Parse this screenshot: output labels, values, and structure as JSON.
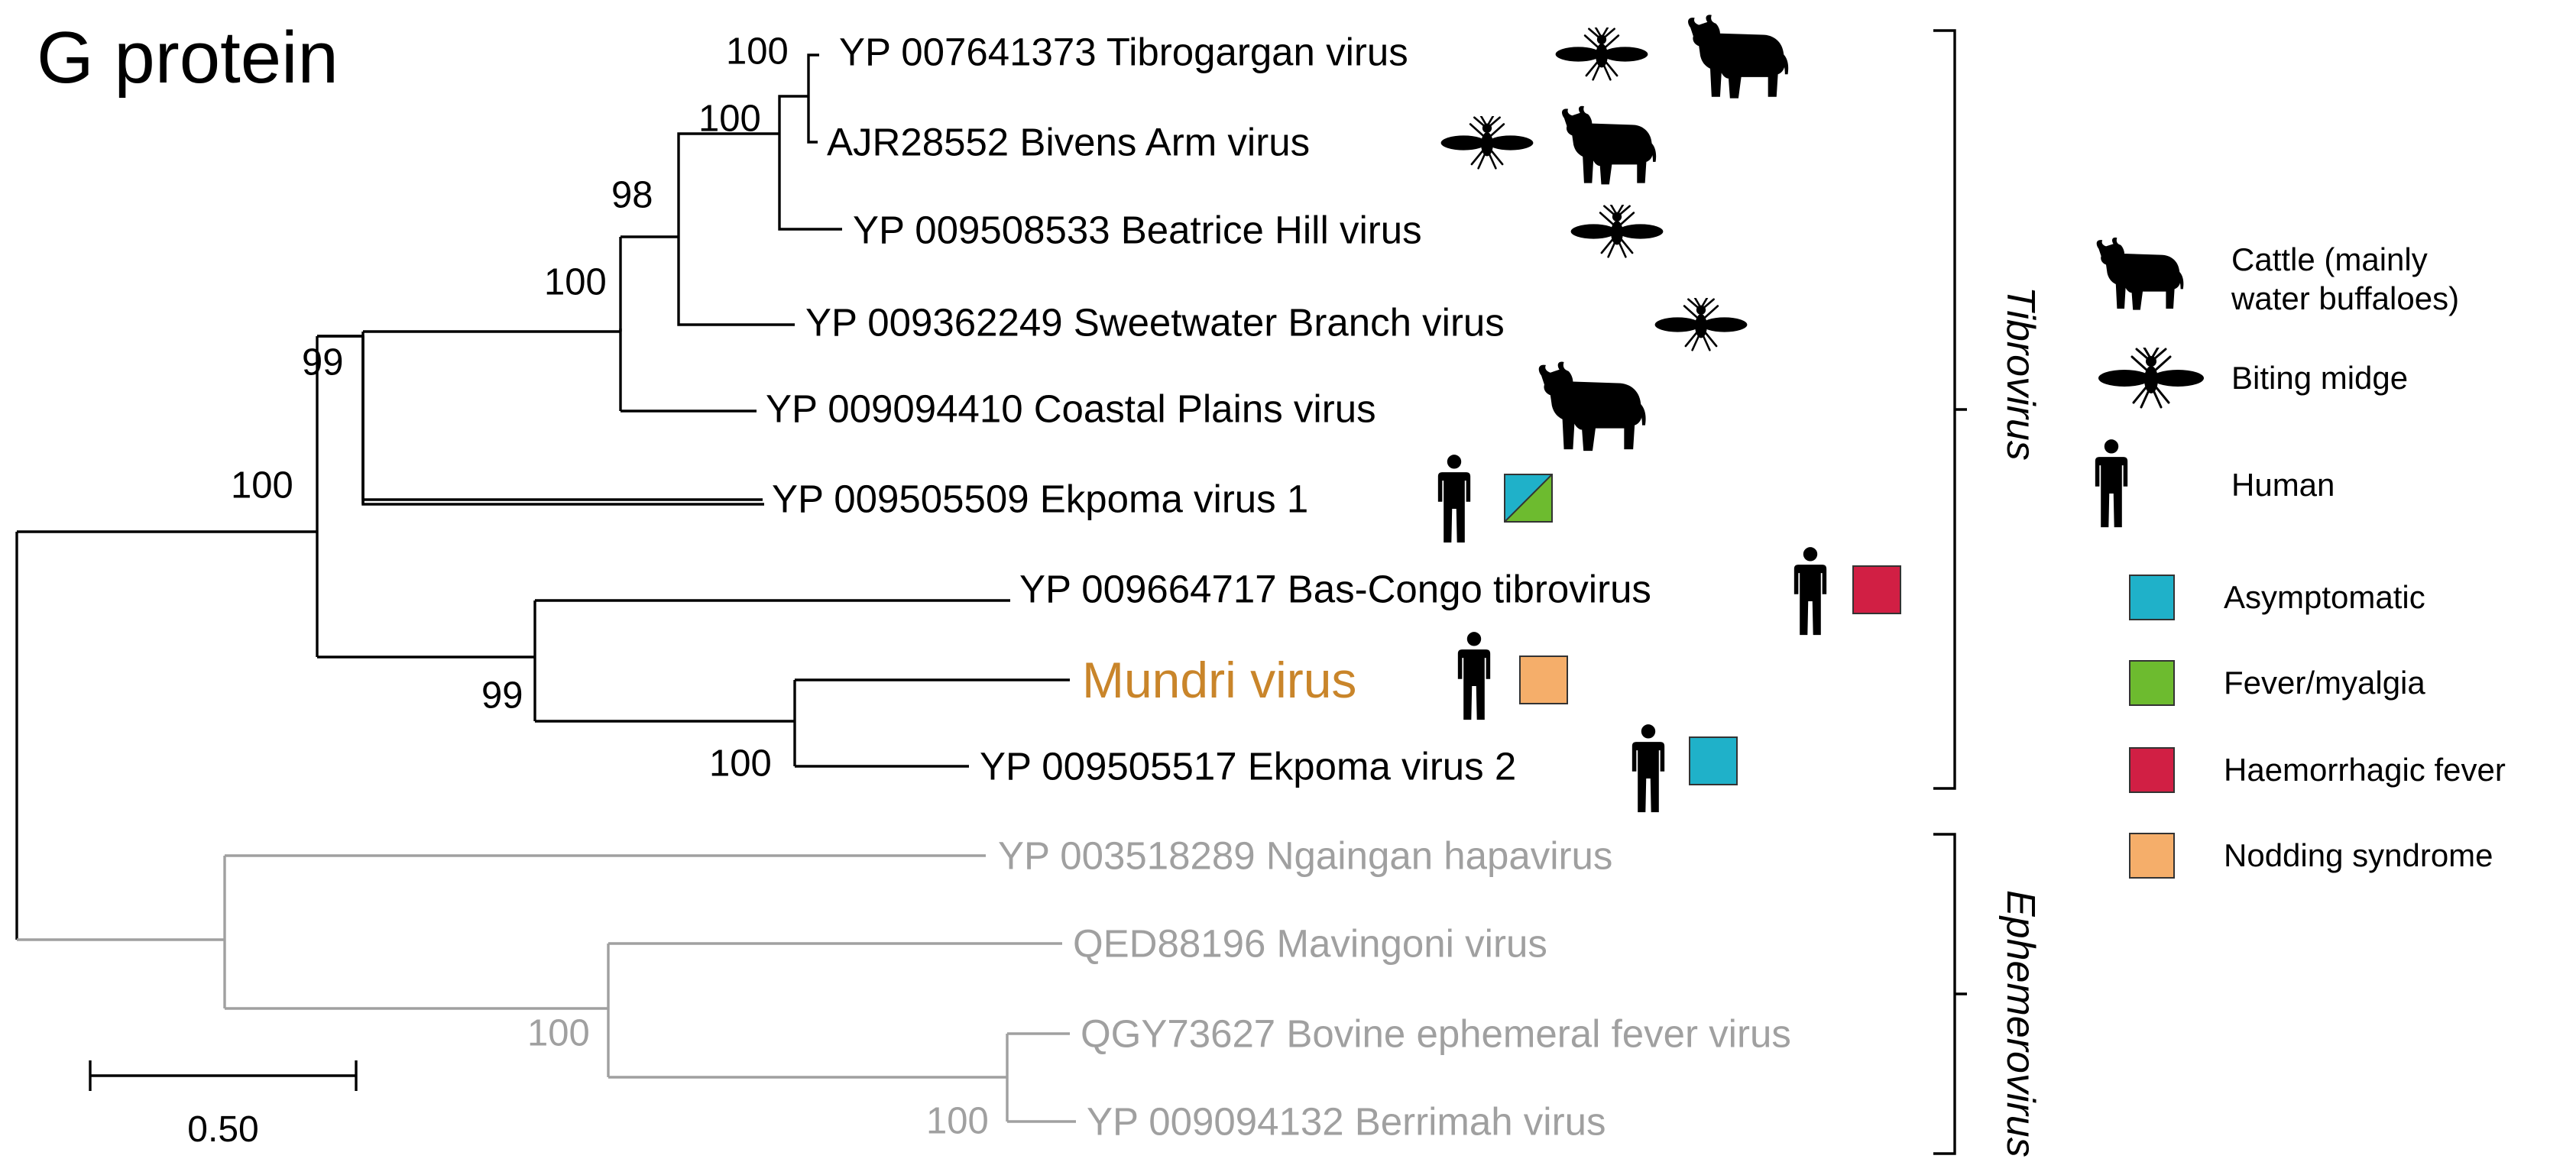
{
  "title": "G protein",
  "colors": {
    "branch_ingroup": "#000000",
    "branch_outgroup": "#a0a0a0",
    "highlight": "#c9852a",
    "asymptomatic": "#1fb1c9",
    "fever_myalgia": "#6dbb2f",
    "haemorrhagic_fever": "#d11f44",
    "nodding_syndrome": "#f5ae6a"
  },
  "tree": {
    "genera": {
      "tibrovirus": "Tibrovirus",
      "ephemerovirus": "Ephemerovirus"
    },
    "taxa": [
      {
        "id": "tibrogargan",
        "label": "YP 007641373 Tibrogargan virus",
        "hosts": [
          "biting-midge-icon",
          "cattle-icon"
        ]
      },
      {
        "id": "bivens",
        "label": "AJR28552 Bivens Arm virus",
        "hosts": [
          "biting-midge-icon",
          "cattle-icon"
        ]
      },
      {
        "id": "beatrice",
        "label": "YP 009508533 Beatrice Hill virus",
        "hosts": [
          "biting-midge-icon"
        ]
      },
      {
        "id": "sweetwater",
        "label": "YP 009362249 Sweetwater Branch virus",
        "hosts": [
          "biting-midge-icon"
        ]
      },
      {
        "id": "coastal",
        "label": "YP 009094410 Coastal Plains virus",
        "hosts": [
          "cattle-icon"
        ]
      },
      {
        "id": "ekpoma1",
        "label": "YP 009505509 Ekpoma virus 1",
        "hosts": [
          "human-icon"
        ],
        "symptoms": [
          "Asymptomatic",
          "Fever/myalgia"
        ]
      },
      {
        "id": "bascongo",
        "label": "YP 009664717 Bas-Congo tibrovirus",
        "hosts": [
          "human-icon"
        ],
        "symptoms": [
          "Haemorrhagic fever"
        ]
      },
      {
        "id": "mundri",
        "label": "Mundri virus",
        "hosts": [
          "human-icon"
        ],
        "symptoms": [
          "Nodding syndrome"
        ]
      },
      {
        "id": "ekpoma2",
        "label": "YP 009505517 Ekpoma virus 2",
        "hosts": [
          "human-icon"
        ],
        "symptoms": [
          "Asymptomatic"
        ]
      },
      {
        "id": "ngaingan",
        "label": "YP 003518289 Ngaingan hapavirus"
      },
      {
        "id": "mavingoni",
        "label": "QED88196 Mavingoni virus"
      },
      {
        "id": "bovine",
        "label": "QGY73627 Bovine ephemeral fever virus"
      },
      {
        "id": "berrimah",
        "label": "YP 009094132 Berrimah virus"
      }
    ],
    "bootstrap": [
      {
        "id": "n_tibro_bivens",
        "value": "100"
      },
      {
        "id": "n_tbb",
        "value": "100"
      },
      {
        "id": "n_tbbs",
        "value": "98"
      },
      {
        "id": "n_tbbsc",
        "value": "100"
      },
      {
        "id": "n_upper",
        "value": "99"
      },
      {
        "id": "n_tib",
        "value": "100"
      },
      {
        "id": "n_lower",
        "value": "99"
      },
      {
        "id": "n_mundri_ek2",
        "value": "100"
      },
      {
        "id": "n_bovine_berr",
        "value": "100"
      },
      {
        "id": "n_mav",
        "value": "100"
      }
    ],
    "scale_bar": {
      "label": "0.50"
    }
  },
  "legend": [
    {
      "icon": "cattle-icon",
      "label": "Cattle (mainly\nwater buffaloes)"
    },
    {
      "icon": "biting-midge-icon",
      "label": "Biting midge"
    },
    {
      "icon": "human-icon",
      "label": "Human"
    },
    {
      "icon": "asymptomatic-square",
      "label": "Asymptomatic"
    },
    {
      "icon": "fever-myalgia-square",
      "label": "Fever/myalgia"
    },
    {
      "icon": "haemorrhagic-fever-square",
      "label": "Haemorrhagic fever"
    },
    {
      "icon": "nodding-syndrome-square",
      "label": "Nodding syndrome"
    }
  ]
}
